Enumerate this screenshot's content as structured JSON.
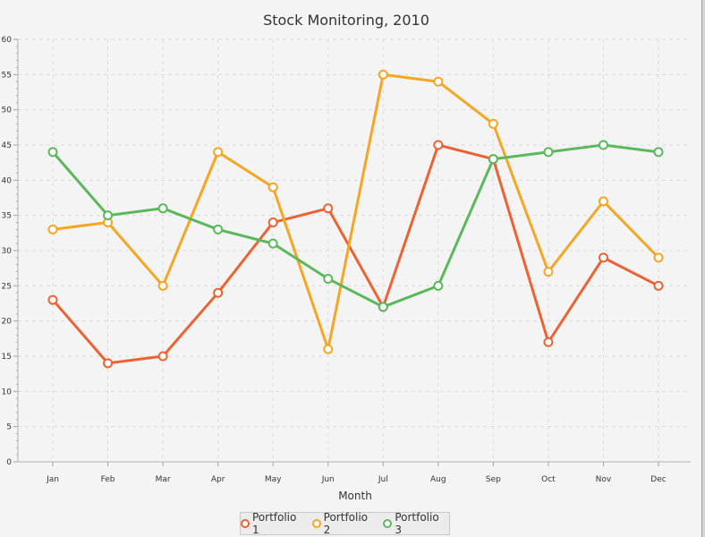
{
  "chart_data": {
    "type": "line",
    "title": "Stock Monitoring, 2010",
    "xlabel": "Month",
    "ylabel": "",
    "ylim": [
      0,
      60
    ],
    "yticks": [
      0,
      5,
      10,
      15,
      20,
      25,
      30,
      35,
      40,
      45,
      50,
      55,
      60
    ],
    "categories": [
      "Jan",
      "Feb",
      "Mar",
      "Apr",
      "May",
      "Jun",
      "Jul",
      "Aug",
      "Sep",
      "Oct",
      "Nov",
      "Dec"
    ],
    "grid": true,
    "legend_position": "bottom",
    "series": [
      {
        "name": "Portfolio 1",
        "color": "#ec6333",
        "values": [
          23,
          14,
          15,
          24,
          34,
          36,
          22,
          45,
          43,
          17,
          29,
          25
        ]
      },
      {
        "name": "Portfolio 2",
        "color": "#f5a623",
        "values": [
          33,
          34,
          25,
          44,
          39,
          16,
          55,
          54,
          48,
          27,
          37,
          29
        ]
      },
      {
        "name": "Portfolio 3",
        "color": "#5cb85c",
        "values": [
          44,
          35,
          36,
          33,
          31,
          26,
          22,
          25,
          43,
          44,
          45,
          44
        ]
      }
    ]
  }
}
